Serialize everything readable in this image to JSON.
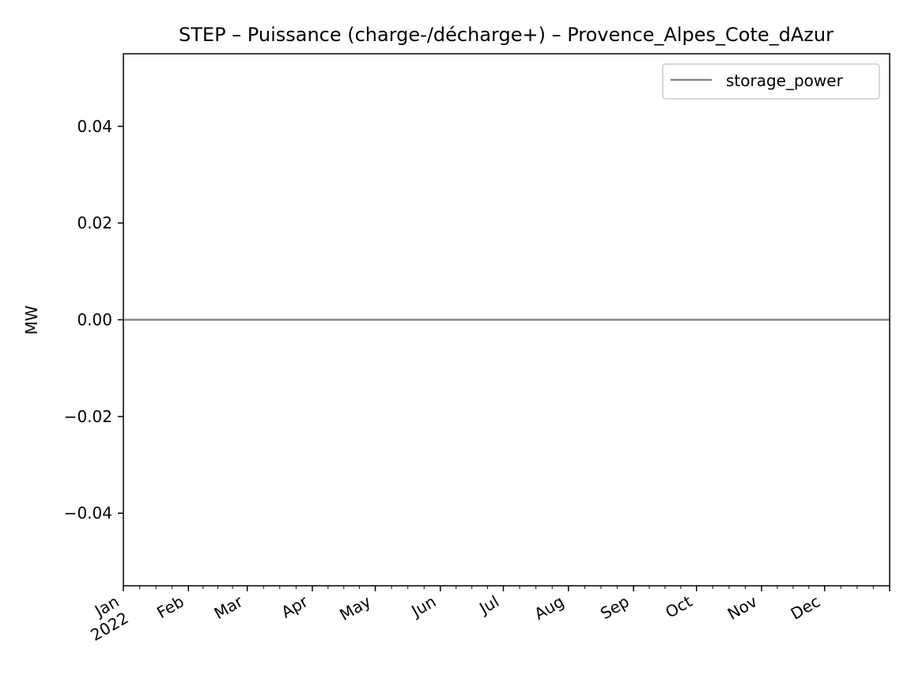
{
  "chart_data": {
    "type": "line",
    "title": "STEP – Puissance (charge-/décharge+) – Provence_Alpes_Cote_dAzur",
    "xlabel": "",
    "ylabel": "MW",
    "x_range": [
      "2022-01-01",
      "2023-01-01"
    ],
    "ylim": [
      -0.055,
      0.055
    ],
    "grid": false,
    "legend_position": "top-right",
    "x_ticks": [
      {
        "date": "2022-01-01",
        "label": "Jan",
        "sublabel": "2022"
      },
      {
        "date": "2022-02-01",
        "label": "Feb",
        "sublabel": ""
      },
      {
        "date": "2022-03-01",
        "label": "Mar",
        "sublabel": ""
      },
      {
        "date": "2022-04-01",
        "label": "Apr",
        "sublabel": ""
      },
      {
        "date": "2022-05-01",
        "label": "May",
        "sublabel": ""
      },
      {
        "date": "2022-06-01",
        "label": "Jun",
        "sublabel": ""
      },
      {
        "date": "2022-07-01",
        "label": "Jul",
        "sublabel": ""
      },
      {
        "date": "2022-08-01",
        "label": "Aug",
        "sublabel": ""
      },
      {
        "date": "2022-09-01",
        "label": "Sep",
        "sublabel": ""
      },
      {
        "date": "2022-10-01",
        "label": "Oct",
        "sublabel": ""
      },
      {
        "date": "2022-11-01",
        "label": "Nov",
        "sublabel": ""
      },
      {
        "date": "2022-12-01",
        "label": "Dec",
        "sublabel": ""
      }
    ],
    "y_ticks": [
      {
        "value": 0.04,
        "label": "0.04"
      },
      {
        "value": 0.02,
        "label": "0.02"
      },
      {
        "value": 0.0,
        "label": "0.00"
      },
      {
        "value": -0.02,
        "label": "−0.02"
      },
      {
        "value": -0.04,
        "label": "−0.04"
      }
    ],
    "series": [
      {
        "name": "storage_power",
        "color": "#888888",
        "x": [
          "2022-01-01",
          "2023-01-01"
        ],
        "values": [
          0.0,
          0.0
        ]
      }
    ]
  }
}
